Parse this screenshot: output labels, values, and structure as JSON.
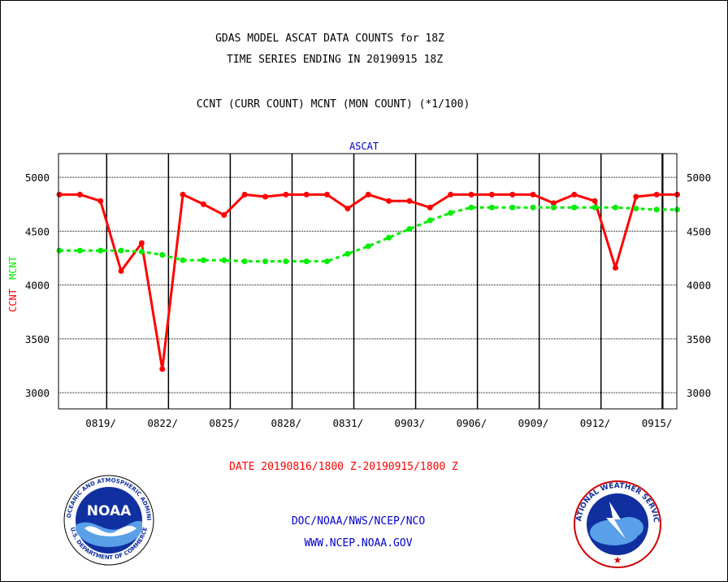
{
  "header": {
    "title_line1": "GDAS MODEL ASCAT DATA COUNTS for 18Z",
    "title_line2": "TIME SERIES ENDING IN 20190915 18Z",
    "subtitle": "CCNT (CURR COUNT) MCNT (MON COUNT) (*1/100)"
  },
  "chart_data": {
    "type": "line",
    "title": "ASCAT",
    "ylabel_ccnt": "CCNT",
    "ylabel_mcnt": "MCNT",
    "xlabel": "DATE 20190816/1800 Z-20190915/1800 Z",
    "ylim": [
      2850,
      5220
    ],
    "yticks": [
      3000,
      3500,
      4000,
      4500,
      5000
    ],
    "x_tick_labels": [
      "0819/",
      "0822/",
      "0825/",
      "0828/",
      "0831/",
      "0903/",
      "0906/",
      "0909/",
      "0912/",
      "0915/"
    ],
    "dates": [
      "0816",
      "0817",
      "0818",
      "0819",
      "0820",
      "0821",
      "0822",
      "0823",
      "0824",
      "0825",
      "0826",
      "0827",
      "0828",
      "0829",
      "0830",
      "0831",
      "0901",
      "0902",
      "0903",
      "0904",
      "0905",
      "0906",
      "0907",
      "0908",
      "0909",
      "0910",
      "0911",
      "0912",
      "0913",
      "0914",
      "0915"
    ],
    "series": [
      {
        "name": "CCNT",
        "color": "#ff0000",
        "values": [
          4840,
          4840,
          4780,
          4130,
          4390,
          3220,
          4840,
          4750,
          4650,
          4840,
          4820,
          4840,
          4840,
          4840,
          4710,
          4840,
          4780,
          4780,
          4720,
          4840,
          4840,
          4840,
          4840,
          4840,
          4760,
          4840,
          4780,
          4160,
          4820,
          4840,
          4840
        ]
      },
      {
        "name": "MCNT",
        "color": "#00ee00",
        "values": [
          4320,
          4320,
          4320,
          4320,
          4310,
          4280,
          4230,
          4230,
          4230,
          4220,
          4220,
          4220,
          4220,
          4220,
          4290,
          4360,
          4440,
          4520,
          4600,
          4670,
          4720,
          4720,
          4720,
          4720,
          4720,
          4720,
          4720,
          4720,
          4710,
          4700,
          4700
        ]
      }
    ],
    "grid": true
  },
  "footer": {
    "line1": "DOC/NOAA/NWS/NCEP/NCO",
    "line2": "WWW.NCEP.NOAA.GOV"
  },
  "logos": {
    "noaa_text": "NOAA",
    "noaa_ring": "NATIONAL OCEANIC AND ATMOSPHERIC ADMINISTRATION",
    "noaa_ring_bottom": "U.S. DEPARTMENT OF COMMERCE",
    "nws_ring": "NATIONAL WEATHER SERVICE"
  },
  "colors": {
    "title": "#000000",
    "chart_title": "#0000cc",
    "ccnt": "#ff0000",
    "mcnt": "#00ee00",
    "footer": "#0000cc",
    "date": "#ff0000"
  }
}
